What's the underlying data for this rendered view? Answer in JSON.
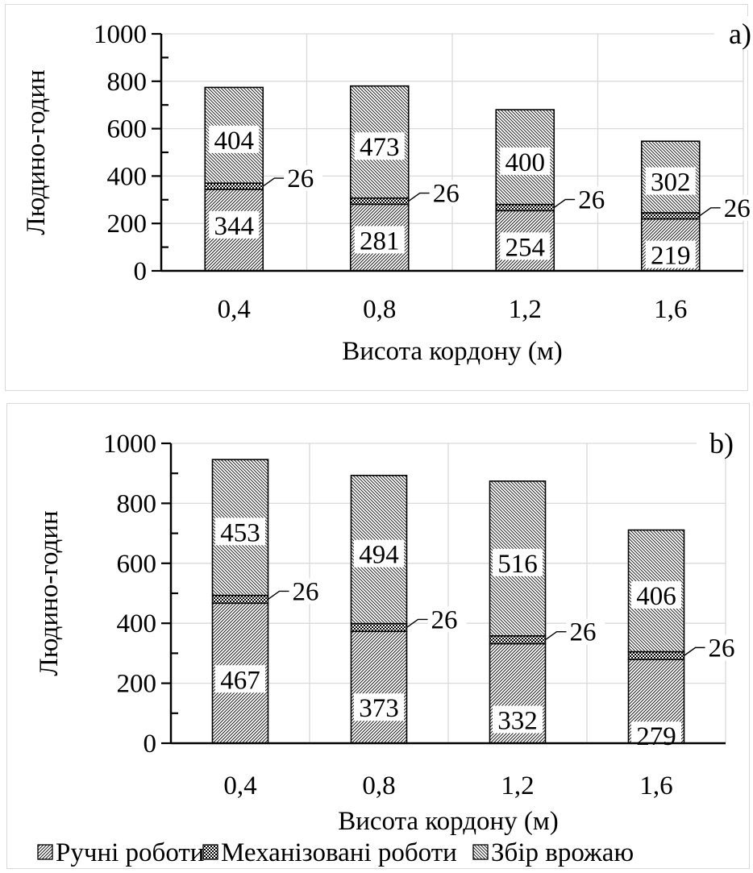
{
  "chart_data": [
    {
      "type": "bar",
      "stacked": true,
      "panel_label": "a)",
      "categories": [
        "0,4",
        "0,8",
        "1,2",
        "1,6"
      ],
      "series": [
        {
          "name": "Ручні роботи",
          "values": [
            344,
            281,
            254,
            219
          ],
          "pattern": "diagonal-dense"
        },
        {
          "name": "Механізовані роботи",
          "values": [
            26,
            26,
            26,
            26
          ],
          "pattern": "checker"
        },
        {
          "name": "Збір врожаю",
          "values": [
            404,
            473,
            400,
            302
          ],
          "pattern": "diagonal-reverse"
        }
      ],
      "xlabel": "Висота кордону (м)",
      "ylabel": "Людино-годин",
      "ylim": [
        0,
        1000
      ],
      "yticks": [
        "0",
        "200",
        "400",
        "600",
        "800",
        "1000"
      ],
      "grid": true
    },
    {
      "type": "bar",
      "stacked": true,
      "panel_label": "b)",
      "categories": [
        "0,4",
        "0,8",
        "1,2",
        "1,6"
      ],
      "series": [
        {
          "name": "Ручні роботи",
          "values": [
            467,
            373,
            332,
            279
          ],
          "pattern": "diagonal-dense"
        },
        {
          "name": "Механізовані роботи",
          "values": [
            26,
            26,
            26,
            26
          ],
          "pattern": "checker"
        },
        {
          "name": "Збір врожаю",
          "values": [
            453,
            494,
            516,
            406
          ],
          "pattern": "diagonal-reverse"
        }
      ],
      "xlabel": "Висота кордону (м)",
      "ylabel": "Людино-годин",
      "ylim": [
        0,
        1000
      ],
      "yticks": [
        "0",
        "200",
        "400",
        "600",
        "800",
        "1000"
      ],
      "grid": true,
      "legend": "bottom"
    }
  ]
}
